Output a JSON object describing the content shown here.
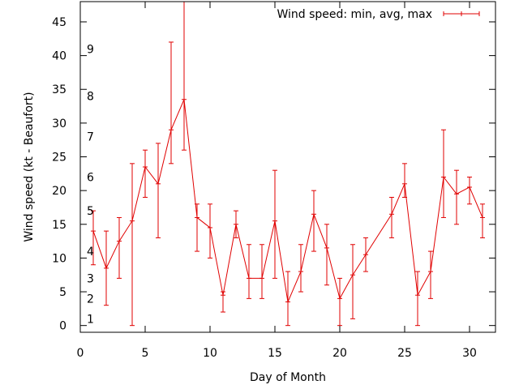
{
  "chart_data": {
    "type": "line",
    "title": "",
    "xlabel": "Day of Month",
    "ylabel": "Wind speed (kt - Beaufort)",
    "xlim": [
      0,
      32
    ],
    "ylim": [
      -1,
      48
    ],
    "x_ticks": [
      0,
      5,
      10,
      15,
      20,
      25,
      30
    ],
    "y_ticks": [
      0,
      5,
      10,
      15,
      20,
      25,
      30,
      35,
      40,
      45
    ],
    "grid": false,
    "legend_position": "top-right",
    "series": [
      {
        "name": "Wind speed: min, avg, max",
        "color": "#e00000",
        "x": [
          1,
          2,
          3,
          4,
          5,
          6,
          7,
          8,
          9,
          10,
          11,
          12,
          13,
          14,
          15,
          16,
          17,
          18,
          19,
          20,
          21,
          22,
          24,
          25,
          26,
          27,
          28,
          29,
          30,
          31
        ],
        "y": [
          14,
          8.5,
          12.5,
          15.5,
          23.5,
          21,
          29,
          33.5,
          16,
          14.5,
          4.5,
          15,
          7,
          7,
          15.5,
          3.5,
          8,
          16.5,
          11.5,
          4,
          7.5,
          10.5,
          16.5,
          21,
          4.5,
          8,
          22,
          19.5,
          20.5,
          16
        ],
        "y_min": [
          9,
          3,
          7,
          0,
          19,
          13,
          24,
          26,
          11,
          10,
          2,
          13,
          4,
          4,
          7,
          0,
          5,
          11,
          6,
          0,
          1,
          8,
          13,
          19,
          0,
          4,
          16,
          15,
          18,
          13
        ],
        "y_max": [
          17,
          14,
          16,
          24,
          26,
          27,
          42,
          48,
          18,
          18,
          5,
          17,
          12,
          12,
          23,
          8,
          12,
          20,
          15,
          7,
          12,
          13,
          19,
          24,
          8,
          11,
          29,
          23,
          22,
          18
        ]
      }
    ],
    "beaufort_labels": [
      {
        "label": "1",
        "y": 1
      },
      {
        "label": "2",
        "y": 4
      },
      {
        "label": "3",
        "y": 7
      },
      {
        "label": "4",
        "y": 11
      },
      {
        "label": "5",
        "y": 17
      },
      {
        "label": "6",
        "y": 22
      },
      {
        "label": "7",
        "y": 28
      },
      {
        "label": "8",
        "y": 34
      },
      {
        "label": "9",
        "y": 41
      }
    ]
  }
}
